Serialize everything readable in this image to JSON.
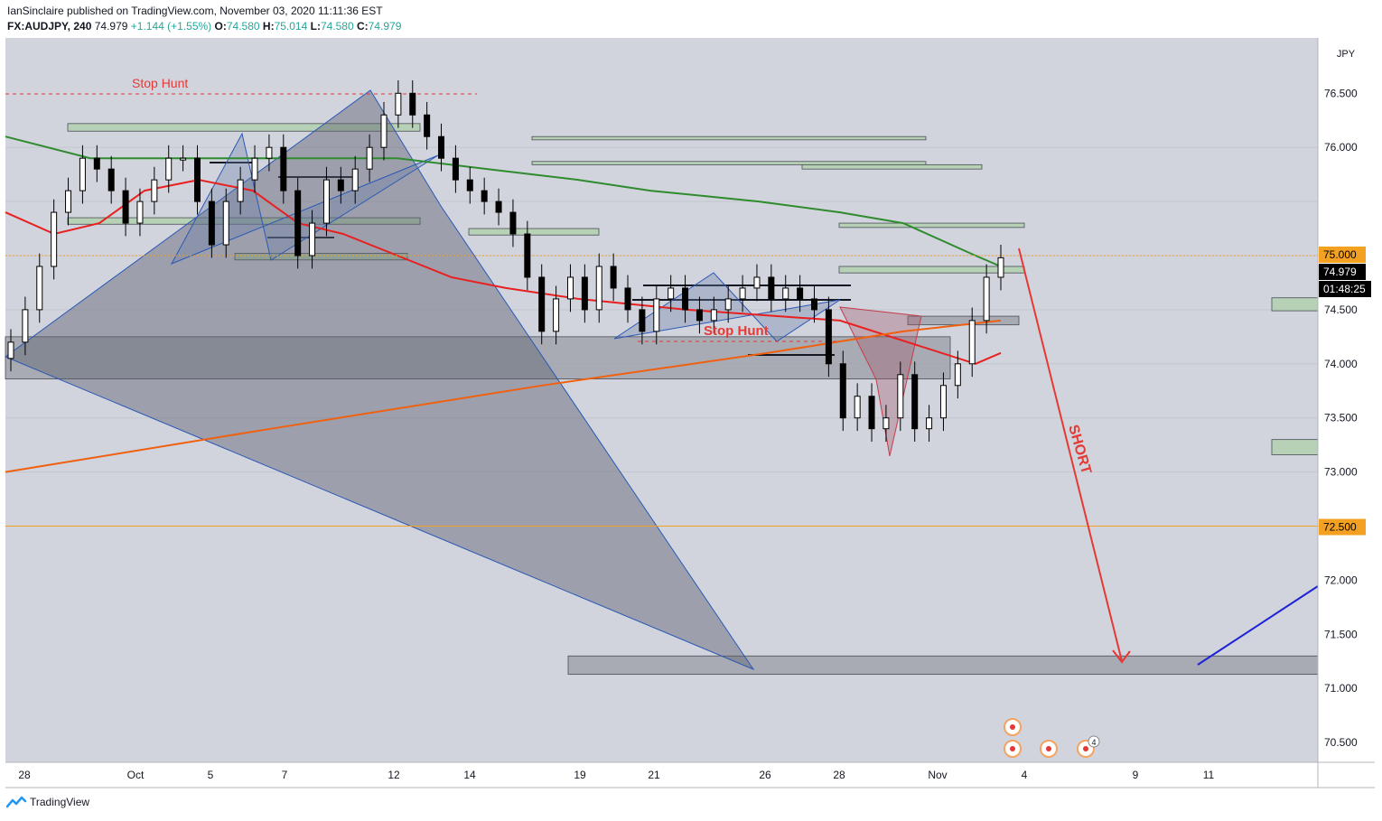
{
  "header": {
    "publisher": "IanSinclaire published on TradingView.com, November 03, 2020 11:11:36 EST",
    "symbol": "FX:AUDJPY, 240",
    "last": "74.979",
    "change": "+1.144 (+1.55%)",
    "o_label": "O:",
    "o": "74.580",
    "h_label": "H:",
    "h": "75.014",
    "l_label": "L:",
    "l": "74.580",
    "c_label": "C:",
    "c": "74.979"
  },
  "footer": {
    "brand": "TradingView"
  },
  "colors": {
    "plot_bg": "#d1d4dc",
    "up": "#ffffff",
    "down": "#000000",
    "wick": "#000000",
    "ema_fast": "#e82020",
    "ema_mid": "#2e8b2e",
    "ema_slow": "#f0600f",
    "level": "#f4a020",
    "green_box": "#b2d0b0",
    "gray_box": "#9a9da5",
    "annotation": "#e53935",
    "projection": "#1e22d8"
  },
  "chart_data": {
    "type": "candlestick",
    "symbol": "FX:AUDJPY",
    "timeframe": "240",
    "y_axis": {
      "unit": "JPY",
      "range": [
        70.3,
        77.2
      ],
      "ticks": [
        "70.500",
        "71.000",
        "71.500",
        "72.000",
        "72.500",
        "73.000",
        "73.500",
        "74.000",
        "74.500",
        "75.000",
        "76.000",
        "76.500"
      ]
    },
    "x_axis": {
      "ticks": [
        "28",
        "Oct",
        "5",
        "7",
        "12",
        "14",
        "19",
        "21",
        "26",
        "28",
        "Nov",
        "4",
        "9",
        "11"
      ]
    },
    "price_labels": [
      {
        "text": "75.000",
        "value": 75.0,
        "style": "level"
      },
      {
        "text": "74.979",
        "value": 74.979,
        "style": "last"
      },
      {
        "text": "01:48:25",
        "value": 74.8,
        "style": "countdown"
      },
      {
        "text": "72.500",
        "value": 72.5,
        "style": "level"
      }
    ],
    "horizontal_levels": [
      75.0,
      72.5
    ],
    "candles_close": [
      74.2,
      74.5,
      74.9,
      75.4,
      75.6,
      75.9,
      75.8,
      75.6,
      75.3,
      75.5,
      75.7,
      75.9,
      75.9,
      75.5,
      75.1,
      75.5,
      75.7,
      75.9,
      76.0,
      75.6,
      75.0,
      75.3,
      75.7,
      75.6,
      75.8,
      76.0,
      76.3,
      76.5,
      76.3,
      76.1,
      75.9,
      75.7,
      75.6,
      75.5,
      75.4,
      75.2,
      74.8,
      74.3,
      74.6,
      74.8,
      74.5,
      74.9,
      74.7,
      74.5,
      74.3,
      74.6,
      74.7,
      74.5,
      74.4,
      74.5,
      74.6,
      74.7,
      74.8,
      74.6,
      74.7,
      74.6,
      74.5,
      74.0,
      73.5,
      73.7,
      73.4,
      73.5,
      73.9,
      73.4,
      73.5,
      73.8,
      74.0,
      74.4,
      74.8,
      74.98
    ],
    "moving_averages": [
      {
        "color": "#e82020",
        "values": [
          75.4,
          75.2,
          75.3,
          75.6,
          75.7,
          75.6,
          75.3,
          75.2,
          75.0,
          74.8,
          74.7,
          74.6,
          74.5,
          74.4,
          74.0,
          74.1
        ]
      },
      {
        "color": "#2e8b2e",
        "values": [
          76.1,
          75.9,
          75.9,
          75.9,
          75.9,
          75.8,
          75.7,
          75.6,
          75.5,
          75.4,
          75.3,
          75.0,
          74.9
        ]
      },
      {
        "color": "#f0600f",
        "values": [
          73.0,
          73.4,
          73.8,
          74.1,
          74.3,
          74.4
        ]
      }
    ],
    "zones": [
      {
        "kind": "supply",
        "low": 76.15,
        "high": 76.22
      },
      {
        "kind": "supply",
        "low": 75.29,
        "high": 75.35
      },
      {
        "kind": "supply",
        "low": 74.96,
        "high": 75.02
      },
      {
        "kind": "supply",
        "low": 76.07,
        "high": 76.1
      },
      {
        "kind": "supply",
        "low": 75.84,
        "high": 75.87
      },
      {
        "kind": "supply",
        "low": 75.8,
        "high": 75.84
      },
      {
        "kind": "supply",
        "low": 75.19,
        "high": 75.25
      },
      {
        "kind": "supply",
        "low": 74.84,
        "high": 74.9
      },
      {
        "kind": "supply",
        "low": 75.26,
        "high": 75.3
      },
      {
        "kind": "supply",
        "low": 74.49,
        "high": 74.61
      },
      {
        "kind": "supply",
        "low": 73.16,
        "high": 73.3
      },
      {
        "kind": "gray",
        "low": 73.86,
        "high": 74.25
      },
      {
        "kind": "gray",
        "low": 71.13,
        "high": 71.3
      },
      {
        "kind": "gray",
        "low": 74.36,
        "high": 74.44
      }
    ],
    "annotations": [
      {
        "text": "Stop Hunt",
        "color": "#e53935",
        "style": "normal"
      },
      {
        "text": "Stop Hunt",
        "color": "#e53935",
        "style": "bold"
      },
      {
        "text": "SHORT",
        "color": "#e53935",
        "style": "bold-rotated"
      }
    ],
    "event_badge_count": "4"
  }
}
